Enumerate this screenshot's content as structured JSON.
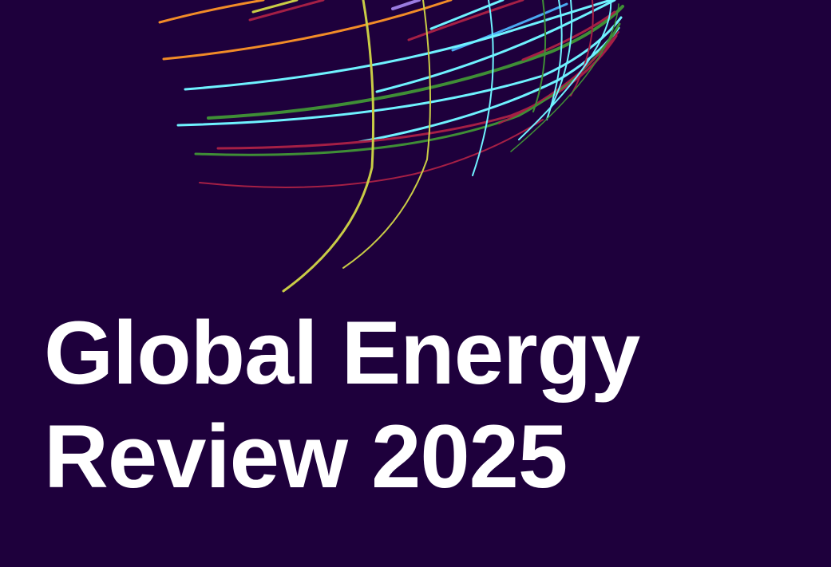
{
  "cover": {
    "title_line1": "Global Energy",
    "title_line2": "Review 2025"
  },
  "colors": {
    "background": "#1e003c",
    "text": "#ffffff",
    "orange": "#f28c28",
    "yellow": "#c9cc46",
    "crimson": "#a51f45",
    "cyan": "#6ff2ff",
    "green": "#3f8e36",
    "blue": "#4aa8f0",
    "purple": "#9a7be0"
  },
  "graphic": {
    "icon": "globe-lines-icon"
  }
}
